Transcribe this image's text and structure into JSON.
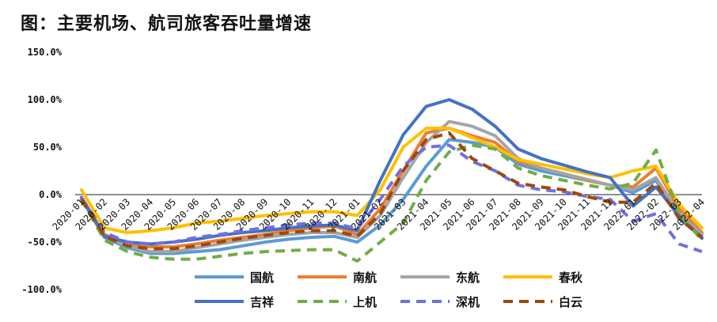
{
  "title": "图：主要机场、航司旅客吞吐量增速",
  "chart_data": {
    "type": "line",
    "title": "图：主要机场、航司旅客吞吐量增速",
    "xlabel": "",
    "ylabel": "",
    "ylim": [
      -100,
      150
    ],
    "yticks": [
      "150.0%",
      "100.0%",
      "50.0%",
      "0.0%",
      "-50.0%",
      "-100.0%"
    ],
    "ytick_values": [
      150,
      100,
      50,
      0,
      -50,
      -100
    ],
    "grid": false,
    "legend_position": "bottom",
    "categories": [
      "2020-01",
      "2020-02",
      "2020-03",
      "2020-04",
      "2020-05",
      "2020-06",
      "2020-07",
      "2020-08",
      "2020-09",
      "2020-10",
      "2020-11",
      "2020-12",
      "2021-01",
      "2021-02",
      "2021-03",
      "2021-04",
      "2021-05",
      "2021-06",
      "2021-07",
      "2021-08",
      "2021-09",
      "2021-10",
      "2021-11",
      "2021-12",
      "2022-01",
      "2022-02",
      "2022-03",
      "2022-04"
    ],
    "series": [
      {
        "name": "国航",
        "color": "#5b9bd5",
        "dash": false,
        "values": [
          -5,
          -45,
          -56,
          -62,
          -62,
          -60,
          -58,
          -54,
          -50,
          -47,
          -45,
          -44,
          -50,
          -32,
          -5,
          30,
          58,
          55,
          50,
          32,
          25,
          20,
          15,
          10,
          2,
          15,
          -25,
          -45
        ]
      },
      {
        "name": "南航",
        "color": "#ed7d31",
        "dash": false,
        "values": [
          -3,
          -42,
          -52,
          -55,
          -55,
          -52,
          -48,
          -45,
          -42,
          -38,
          -35,
          -33,
          -42,
          -15,
          25,
          65,
          70,
          62,
          55,
          35,
          28,
          22,
          15,
          10,
          8,
          28,
          -15,
          -40
        ]
      },
      {
        "name": "东航",
        "color": "#a5a5a5",
        "dash": false,
        "values": [
          -4,
          -44,
          -54,
          -60,
          -60,
          -56,
          -52,
          -48,
          -45,
          -42,
          -40,
          -40,
          -45,
          -22,
          18,
          55,
          77,
          72,
          62,
          38,
          28,
          22,
          16,
          10,
          5,
          18,
          -20,
          -42
        ]
      },
      {
        "name": "春秋",
        "color": "#ffc000",
        "dash": false,
        "values": [
          5,
          -35,
          -40,
          -38,
          -35,
          -30,
          -28,
          -25,
          -22,
          -20,
          -18,
          -18,
          -22,
          5,
          50,
          70,
          70,
          60,
          50,
          37,
          32,
          27,
          22,
          18,
          25,
          30,
          -10,
          -35
        ]
      },
      {
        "name": "吉祥",
        "color": "#4472c4",
        "dash": false,
        "values": [
          -3,
          -44,
          -50,
          -52,
          -50,
          -47,
          -43,
          -40,
          -38,
          -35,
          -33,
          -32,
          -38,
          15,
          63,
          93,
          100,
          90,
          72,
          48,
          38,
          31,
          24,
          18,
          -12,
          8,
          -22,
          -46
        ]
      },
      {
        "name": "上机",
        "color": "#70ad47",
        "dash": true,
        "values": [
          -5,
          -48,
          -60,
          -66,
          -68,
          -68,
          -65,
          -62,
          -60,
          -59,
          -58,
          -58,
          -70,
          -50,
          -30,
          15,
          45,
          52,
          48,
          28,
          20,
          15,
          10,
          6,
          12,
          47,
          -20,
          -48
        ]
      },
      {
        "name": "深机",
        "color": "#7070e0",
        "dash": true,
        "values": [
          -3,
          -40,
          -50,
          -52,
          -50,
          -45,
          -42,
          -38,
          -35,
          -32,
          -30,
          -30,
          -36,
          -5,
          30,
          50,
          52,
          35,
          25,
          10,
          5,
          3,
          -2,
          -5,
          -28,
          -20,
          -52,
          -60
        ]
      },
      {
        "name": "白云",
        "color": "#9e480e",
        "dash": true,
        "values": [
          -5,
          -44,
          -54,
          -57,
          -57,
          -54,
          -50,
          -46,
          -43,
          -40,
          -38,
          -38,
          -44,
          -20,
          25,
          58,
          65,
          38,
          25,
          12,
          8,
          5,
          -2,
          -8,
          -8,
          12,
          -25,
          -45
        ]
      }
    ]
  }
}
